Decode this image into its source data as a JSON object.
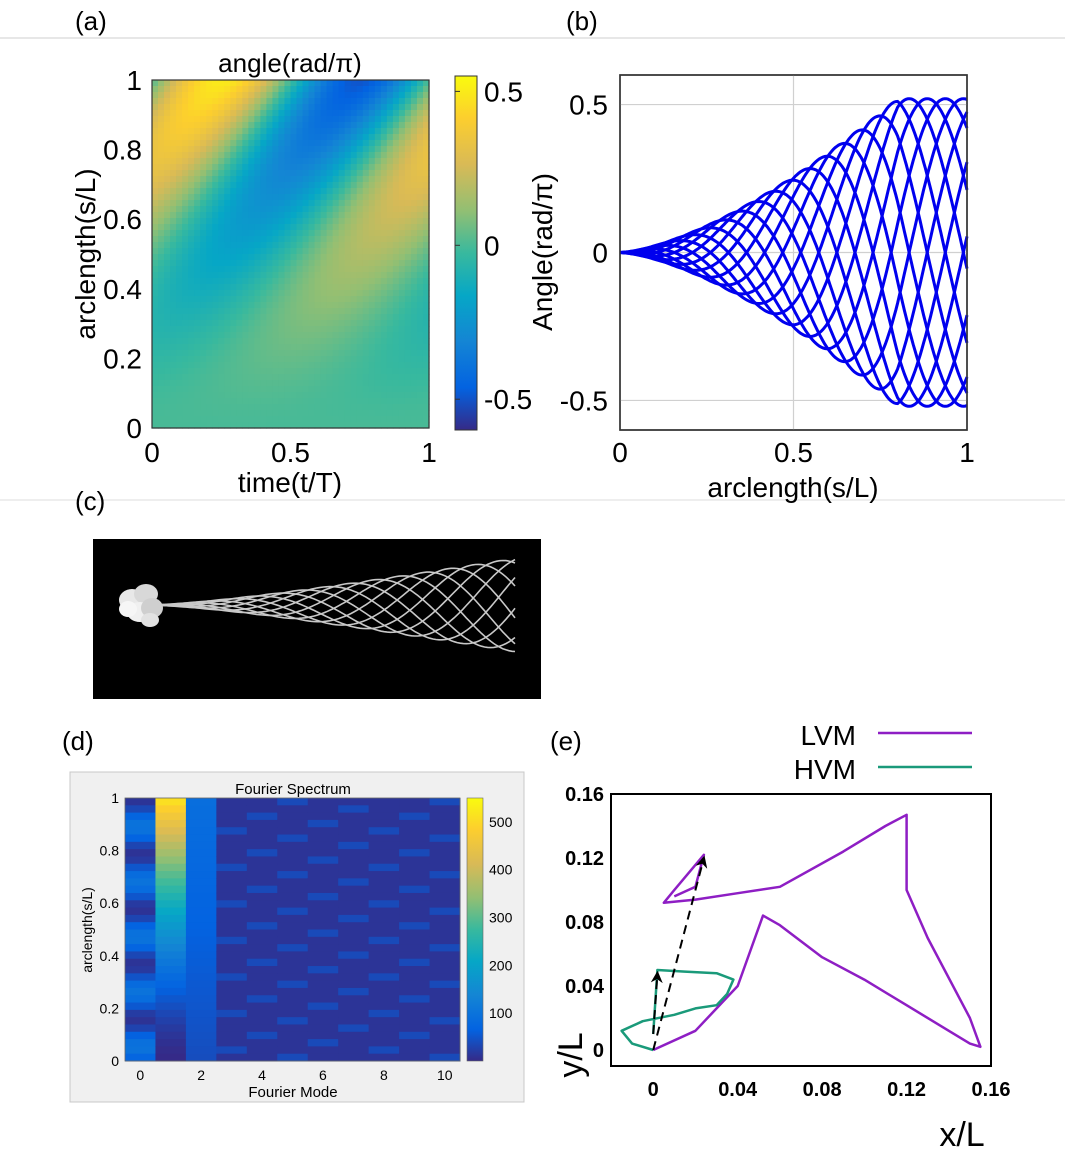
{
  "panel_labels": {
    "a": "(a)",
    "b": "(b)",
    "c": "(c)",
    "d": "(d)",
    "e": "(e)"
  },
  "colors": {
    "wave_blue": "#0000ee",
    "lvm": "#8e1ec4",
    "hvm": "#1a9a7a",
    "parula_low": "#352a87",
    "parula_high": "#f9fb0e"
  },
  "chart_data": [
    {
      "id": "a",
      "type": "heatmap",
      "title": "angle(rad/π)",
      "xlabel": "time(t/T)",
      "ylabel": "arclength(s/L)",
      "xlim": [
        0,
        1
      ],
      "ylim": [
        0,
        1
      ],
      "x_ticks": [
        "0",
        "0.5",
        "1"
      ],
      "y_ticks": [
        "0",
        "0.2",
        "0.4",
        "0.6",
        "0.8",
        "1"
      ],
      "colorbar": {
        "range": [
          -0.6,
          0.55
        ],
        "ticks": [
          "0.5",
          "0",
          "-0.5"
        ],
        "colormap": "parula"
      },
      "field": "angle(s,t) ≈ 0.5·s^1.5·cos(2π(s·0.95 − t − 0.7))"
    },
    {
      "id": "b",
      "type": "line",
      "xlabel": "arclength(s/L)",
      "ylabel": "Angle(rad/π)",
      "xlim": [
        0,
        1
      ],
      "ylim": [
        -0.6,
        0.6
      ],
      "x_ticks": [
        "0",
        "0.5",
        "1"
      ],
      "y_ticks": [
        "0.5",
        "0",
        "-0.5"
      ],
      "grid": true,
      "series_count": 12,
      "envelope_peak": 0.52,
      "envelope_peak_at": 0.8
    },
    {
      "id": "d",
      "type": "heatmap",
      "title": "Fourier Spectrum",
      "xlabel": "Fourier Mode",
      "ylabel": "arclength(s/L)",
      "x_ticks": [
        "0",
        "2",
        "4",
        "6",
        "8",
        "10"
      ],
      "y_ticks": [
        "0",
        "0.2",
        "0.4",
        "0.6",
        "0.8",
        "1"
      ],
      "colorbar": {
        "range": [
          0,
          550
        ],
        "ticks": [
          "500",
          "400",
          "300",
          "200",
          "100"
        ],
        "colormap": "parula"
      },
      "mode0_max": 100,
      "mode1_max": 520
    },
    {
      "id": "e",
      "type": "line",
      "xlabel": "x/L",
      "ylabel": "y/L",
      "xlim": [
        -0.02,
        0.16
      ],
      "ylim": [
        -0.01,
        0.16
      ],
      "x_ticks": [
        "0",
        "0.04",
        "0.08",
        "0.12",
        "0.16"
      ],
      "y_ticks": [
        "0",
        "0.04",
        "0.08",
        "0.12",
        "0.16"
      ],
      "legend_placement": "top-right",
      "series": [
        {
          "name": "LVM",
          "points": [
            [
              0,
              0
            ],
            [
              0.02,
              0.012
            ],
            [
              0.04,
              0.04
            ],
            [
              0.052,
              0.084
            ],
            [
              0.06,
              0.078
            ],
            [
              0.08,
              0.058
            ],
            [
              0.1,
              0.044
            ],
            [
              0.12,
              0.028
            ],
            [
              0.14,
              0.012
            ],
            [
              0.15,
              0.004
            ],
            [
              0.155,
              0.002
            ],
            [
              0.15,
              0.02
            ],
            [
              0.13,
              0.07
            ],
            [
              0.12,
              0.1
            ],
            [
              0.12,
              0.147
            ],
            [
              0.11,
              0.14
            ],
            [
              0.09,
              0.124
            ],
            [
              0.06,
              0.102
            ],
            [
              0.04,
              0.098
            ],
            [
              0.02,
              0.094
            ],
            [
              0.005,
              0.092
            ],
            [
              0.01,
              0.1
            ],
            [
              0.024,
              0.122
            ],
            [
              0.02,
              0.102
            ],
            [
              0.01,
              0.096
            ]
          ]
        },
        {
          "name": "HVM",
          "points": [
            [
              0,
              0
            ],
            [
              -0.01,
              0.004
            ],
            [
              -0.015,
              0.012
            ],
            [
              -0.005,
              0.018
            ],
            [
              0.01,
              0.022
            ],
            [
              0.02,
              0.026
            ],
            [
              0.03,
              0.028
            ],
            [
              0.035,
              0.035
            ],
            [
              0.038,
              0.044
            ],
            [
              0.03,
              0.048
            ],
            [
              0.015,
              0.049
            ],
            [
              0.002,
              0.05
            ],
            [
              0.001,
              0.03
            ],
            [
              0,
              0.01
            ]
          ]
        }
      ],
      "arrows": [
        {
          "from": [
            0,
            0
          ],
          "to": [
            0.024,
            0.12
          ],
          "style": "dashed"
        },
        {
          "from": [
            0,
            0.01
          ],
          "to": [
            0.002,
            0.048
          ],
          "style": "dashed"
        }
      ]
    }
  ]
}
